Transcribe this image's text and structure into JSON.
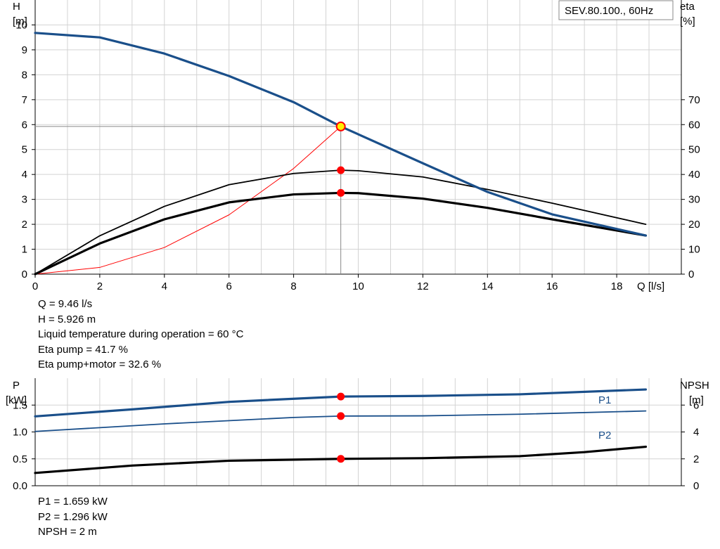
{
  "colors": {
    "head_curve": "#1a4f8a",
    "power_curve": "#1a4f8a",
    "efficiency_curve": "#000000",
    "npsh_curve": "#000000",
    "system_curve": "#ff0000",
    "duty_marker": "#ff0000",
    "duty_marker_head": "#ffee00",
    "grid": "#d3d3d3"
  },
  "chart_data": [
    {
      "type": "line",
      "title_box": "SEV.80.100., 60Hz",
      "xlabel": "Q [l/s]",
      "ylabel_left": [
        "H",
        "[m]"
      ],
      "ylabel_right": [
        "eta",
        "[%]"
      ],
      "xlim": [
        0,
        20
      ],
      "ylim_left": [
        0,
        11
      ],
      "ylim_right": [
        0,
        110
      ],
      "x_ticks": [
        0,
        2,
        4,
        6,
        8,
        10,
        12,
        14,
        16,
        18
      ],
      "y_ticks_left": [
        0,
        1,
        2,
        3,
        4,
        5,
        6,
        7,
        8,
        9,
        10
      ],
      "y_ticks_right": [
        0,
        10,
        20,
        30,
        40,
        50,
        60,
        70
      ],
      "grid": true,
      "series": [
        {
          "key": "head",
          "axis": "left",
          "points": [
            [
              0,
              9.68
            ],
            [
              2,
              9.5
            ],
            [
              4,
              8.85
            ],
            [
              6,
              7.95
            ],
            [
              8,
              6.9
            ],
            [
              9.46,
              5.926
            ],
            [
              12,
              4.45
            ],
            [
              14,
              3.3
            ],
            [
              16,
              2.4
            ],
            [
              18.9,
              1.55
            ]
          ]
        },
        {
          "key": "eta_pump",
          "axis": "right",
          "points": [
            [
              0,
              0
            ],
            [
              2,
              15.4
            ],
            [
              4,
              27.2
            ],
            [
              6,
              35.9
            ],
            [
              8,
              40.4
            ],
            [
              9.46,
              41.7
            ],
            [
              10,
              41.5
            ],
            [
              12,
              39
            ],
            [
              14,
              34
            ],
            [
              16,
              28.5
            ],
            [
              18.9,
              20
            ]
          ]
        },
        {
          "key": "eta_total",
          "axis": "right",
          "points": [
            [
              0,
              0
            ],
            [
              2,
              12.3
            ],
            [
              4,
              22
            ],
            [
              6,
              28.8
            ],
            [
              8,
              32
            ],
            [
              9.46,
              32.6
            ],
            [
              10,
              32.5
            ],
            [
              12,
              30.3
            ],
            [
              14,
              26.6
            ],
            [
              16,
              22
            ],
            [
              18.9,
              15.5
            ]
          ]
        },
        {
          "key": "system_curve",
          "axis": "left",
          "points": [
            [
              0,
              0
            ],
            [
              2,
              0.27
            ],
            [
              4,
              1.07
            ],
            [
              6,
              2.38
            ],
            [
              8,
              4.24
            ],
            [
              9.46,
              5.926
            ]
          ]
        }
      ],
      "operating_point": {
        "q": 9.46,
        "h": 5.926,
        "eta_pump": 41.7,
        "eta_total": 32.6
      }
    },
    {
      "type": "line",
      "xlim": [
        0,
        20
      ],
      "ylabel_left": [
        "P",
        "[kW]"
      ],
      "ylabel_right": [
        "NPSH",
        "[m]"
      ],
      "ylim_left": [
        0,
        2.0
      ],
      "ylim_right": [
        0,
        8
      ],
      "y_ticks_left": [
        "0.0",
        "0.5",
        "1.0",
        "1.5"
      ],
      "y_ticks_left_values": [
        0,
        0.5,
        1.0,
        1.5
      ],
      "y_ticks_right": [
        0,
        2,
        4,
        6
      ],
      "grid": true,
      "series": [
        {
          "name": "P1",
          "axis": "left",
          "points": [
            [
              0,
              1.29
            ],
            [
              3,
              1.42
            ],
            [
              6,
              1.56
            ],
            [
              9.46,
              1.659
            ],
            [
              12,
              1.67
            ],
            [
              15,
              1.7
            ],
            [
              18.9,
              1.79
            ]
          ]
        },
        {
          "name": "P2",
          "axis": "left",
          "points": [
            [
              0,
              1.01
            ],
            [
              4,
              1.15
            ],
            [
              8,
              1.27
            ],
            [
              9.46,
              1.296
            ],
            [
              12,
              1.3
            ],
            [
              15,
              1.33
            ],
            [
              18.9,
              1.39
            ]
          ]
        },
        {
          "key": "npsh",
          "axis": "right",
          "points": [
            [
              0,
              0.95
            ],
            [
              3,
              1.5
            ],
            [
              6,
              1.86
            ],
            [
              9.46,
              2.0
            ],
            [
              12,
              2.05
            ],
            [
              15,
              2.2
            ],
            [
              17,
              2.5
            ],
            [
              18.9,
              2.9
            ]
          ]
        }
      ],
      "operating_point": {
        "q": 9.46,
        "p1": 1.659,
        "p2": 1.296,
        "npsh": 2
      }
    }
  ],
  "info_top": {
    "q": "Q = 9.46 l/s",
    "h": "H = 5.926 m",
    "temp": "Liquid temperature during operation = 60 °C",
    "eta_pump": "Eta pump = 41.7 %",
    "eta_total": "Eta pump+motor = 32.6 %"
  },
  "info_bottom": {
    "p1": "P1 = 1.659 kW",
    "p2": "P2 = 1.296 kW",
    "npsh": "NPSH = 2 m"
  }
}
